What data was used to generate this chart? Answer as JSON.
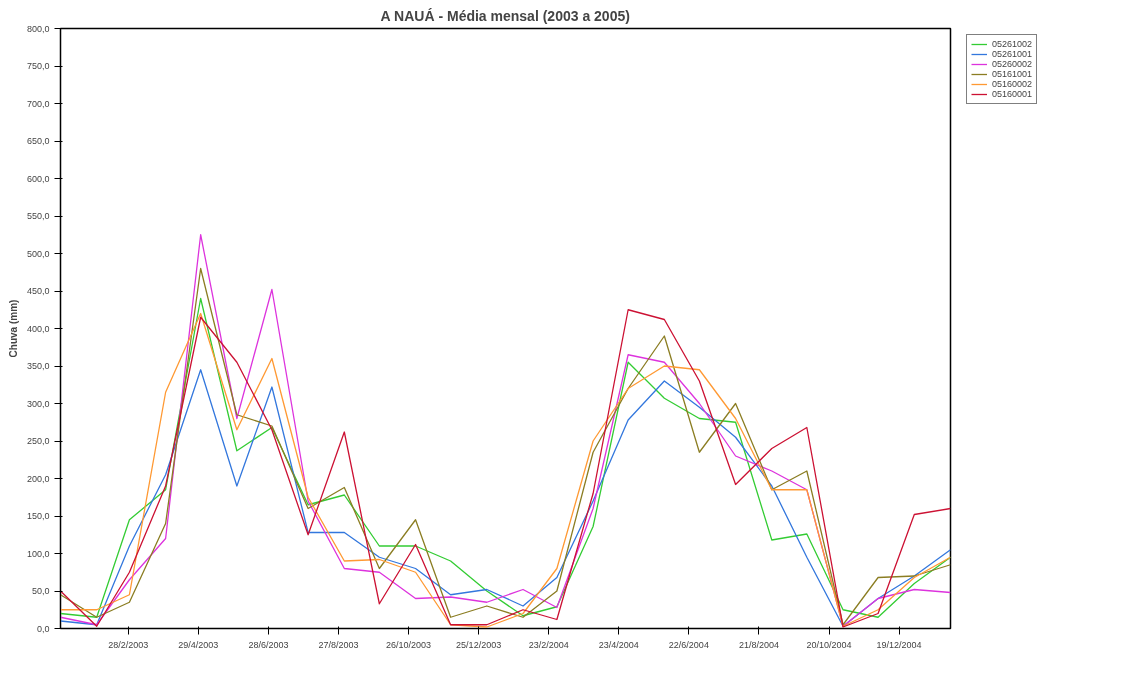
{
  "chart_data": {
    "type": "line",
    "title": "A NAUÁ - Média mensal (2003 a 2005)",
    "ylabel": "Chuva (mm)",
    "x": [
      "2003-01-01",
      "2003-02-01",
      "2003-03-01",
      "2003-04-01",
      "2003-05-01",
      "2003-06-01",
      "2003-07-01",
      "2003-08-01",
      "2003-09-01",
      "2003-10-01",
      "2003-11-01",
      "2003-12-01",
      "2004-01-01",
      "2004-02-01",
      "2004-03-01",
      "2004-04-01",
      "2004-05-01",
      "2004-06-01",
      "2004-07-01",
      "2004-08-01",
      "2004-09-01",
      "2004-10-01",
      "2004-11-01",
      "2004-12-01",
      "2005-01-01",
      "2005-02-01"
    ],
    "series": [
      {
        "name": "05261002",
        "color": "#33cc33",
        "values": [
          20,
          15,
          145,
          185,
          440,
          237,
          268,
          165,
          178,
          110,
          110,
          90,
          50,
          17,
          29,
          136,
          355,
          307,
          280,
          275,
          118,
          126,
          25,
          15,
          60,
          95
        ]
      },
      {
        "name": "05261001",
        "color": "#3377dd",
        "values": [
          10,
          5,
          110,
          205,
          345,
          190,
          322,
          128,
          128,
          95,
          80,
          45,
          52,
          30,
          68,
          170,
          278,
          330,
          295,
          255,
          190,
          95,
          3,
          40,
          70,
          105
        ]
      },
      {
        "name": "05260002",
        "color": "#dd33dd",
        "values": [
          15,
          5,
          65,
          120,
          525,
          280,
          452,
          170,
          80,
          75,
          40,
          42,
          35,
          52,
          28,
          160,
          365,
          355,
          300,
          230,
          210,
          185,
          3,
          40,
          52,
          48
        ]
      },
      {
        "name": "05161001",
        "color": "#8b7d22",
        "values": [
          45,
          15,
          35,
          140,
          480,
          285,
          270,
          160,
          188,
          80,
          145,
          15,
          30,
          15,
          50,
          235,
          320,
          390,
          235,
          300,
          185,
          210,
          5,
          68,
          70,
          85
        ]
      },
      {
        "name": "05160002",
        "color": "#ff9933",
        "values": [
          25,
          25,
          45,
          315,
          420,
          265,
          360,
          175,
          90,
          92,
          75,
          5,
          2,
          20,
          80,
          250,
          320,
          350,
          345,
          280,
          185,
          185,
          3,
          25,
          68,
          95
        ]
      },
      {
        "name": "05160001",
        "color": "#cc1133",
        "values": [
          50,
          3,
          75,
          190,
          415,
          355,
          265,
          125,
          262,
          33,
          112,
          5,
          5,
          25,
          12,
          180,
          425,
          412,
          330,
          192,
          240,
          268,
          2,
          20,
          152,
          160
        ]
      }
    ],
    "xlim": [
      "2003-01-01",
      "2005-02-01"
    ],
    "xticks": [
      {
        "value": "2003-02-28",
        "label": "28/2/2003"
      },
      {
        "value": "2003-04-29",
        "label": "29/4/2003"
      },
      {
        "value": "2003-06-28",
        "label": "28/6/2003"
      },
      {
        "value": "2003-08-27",
        "label": "27/8/2003"
      },
      {
        "value": "2003-10-26",
        "label": "26/10/2003"
      },
      {
        "value": "2003-12-25",
        "label": "25/12/2003"
      },
      {
        "value": "2004-02-23",
        "label": "23/2/2004"
      },
      {
        "value": "2004-04-23",
        "label": "23/4/2004"
      },
      {
        "value": "2004-06-22",
        "label": "22/6/2004"
      },
      {
        "value": "2004-08-21",
        "label": "21/8/2004"
      },
      {
        "value": "2004-10-20",
        "label": "20/10/2004"
      },
      {
        "value": "2004-12-19",
        "label": "19/12/2004"
      }
    ],
    "ylim": [
      0,
      800
    ],
    "yticks": [
      {
        "value": 0,
        "label": "0,0"
      },
      {
        "value": 50,
        "label": "50,0"
      },
      {
        "value": 100,
        "label": "100,0"
      },
      {
        "value": 150,
        "label": "150,0"
      },
      {
        "value": 200,
        "label": "200,0"
      },
      {
        "value": 250,
        "label": "250,0"
      },
      {
        "value": 300,
        "label": "300,0"
      },
      {
        "value": 350,
        "label": "350,0"
      },
      {
        "value": 400,
        "label": "400,0"
      },
      {
        "value": 450,
        "label": "450,0"
      },
      {
        "value": 500,
        "label": "500,0"
      },
      {
        "value": 550,
        "label": "550,0"
      },
      {
        "value": 600,
        "label": "600,0"
      },
      {
        "value": 650,
        "label": "650,0"
      },
      {
        "value": 700,
        "label": "700,0"
      },
      {
        "value": 750,
        "label": "750,0"
      },
      {
        "value": 800,
        "label": "800,0"
      }
    ],
    "grid": false,
    "legend": "top right",
    "marker": "none",
    "line_style": "solid"
  }
}
